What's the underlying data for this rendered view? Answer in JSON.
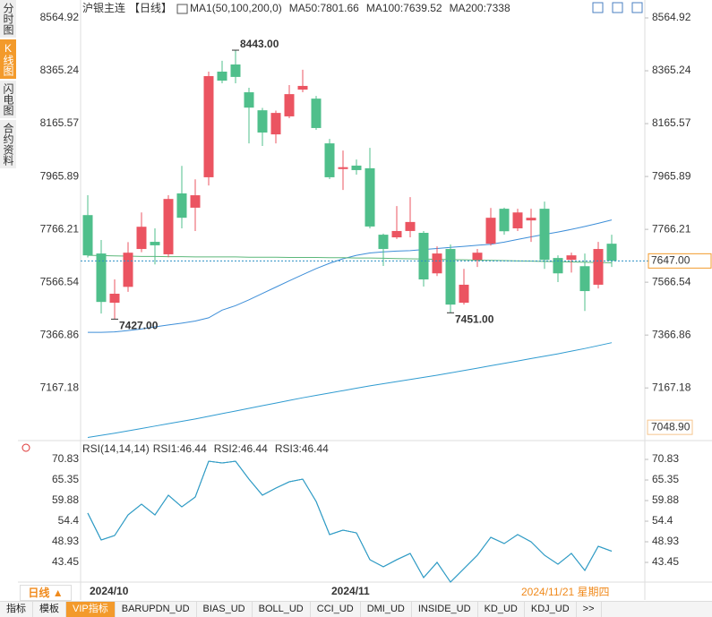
{
  "sidebar": {
    "tabs": [
      "分时图",
      "K线图",
      "闪电图",
      "合约资料"
    ],
    "active": 1
  },
  "chart_data": [
    {
      "type": "candlestick",
      "title": "沪银主连",
      "period": "【日线】",
      "indicator": "MA1(50,100,200,0)",
      "categories": [
        "2024/10",
        null,
        null,
        null,
        null,
        null,
        null,
        null,
        null,
        null,
        null,
        null,
        null,
        null,
        null,
        null,
        null,
        null,
        "2024/11",
        null,
        null,
        null,
        null,
        null,
        null,
        null,
        null,
        null,
        null,
        null,
        null,
        null,
        null,
        null,
        null,
        null,
        null,
        null,
        null,
        null
      ],
      "open": [
        7820,
        7675,
        7489,
        7549,
        7692,
        7719,
        7672,
        7902,
        7848,
        7963,
        8362,
        8389,
        8284,
        8216,
        8125,
        8193,
        8294,
        8260,
        8091,
        7994,
        8007,
        7997,
        7746,
        7736,
        7760,
        7753,
        7600,
        7692,
        7489,
        7651,
        7712,
        7844,
        7770,
        7800,
        7844,
        7658,
        7651,
        7627,
        7557,
        7712
      ],
      "high": [
        7895,
        7726,
        7577,
        7718,
        7830,
        7770,
        7895,
        8006,
        7955,
        8362,
        8403,
        8443,
        8301,
        8225,
        8215,
        8311,
        8369,
        8270,
        8108,
        8064,
        8030,
        8074,
        7750,
        7854,
        7888,
        7760,
        7702,
        7709,
        7617,
        7692,
        7847,
        7848,
        7844,
        7844,
        7871,
        7668,
        7678,
        7675,
        7719,
        7746
      ],
      "low": [
        7660,
        7448,
        7427,
        7530,
        7680,
        7634,
        7661,
        7770,
        7760,
        7932,
        8318,
        8318,
        8091,
        8081,
        8091,
        8186,
        8284,
        8142,
        7956,
        7915,
        7973,
        7770,
        7628,
        7730,
        7736,
        7550,
        7590,
        7451,
        7482,
        7624,
        7705,
        7746,
        7760,
        7719,
        7617,
        7567,
        7603,
        7458,
        7543,
        7624
      ],
      "close": [
        7668,
        7492,
        7523,
        7678,
        7776,
        7706,
        7881,
        7810,
        7895,
        8345,
        8328,
        8342,
        8226,
        8132,
        8206,
        8277,
        8308,
        8149,
        7963,
        8001,
        7990,
        7777,
        7692,
        7760,
        7794,
        7577,
        7675,
        7482,
        7557,
        7678,
        7810,
        7759,
        7830,
        7810,
        7651,
        7600,
        7668,
        7533,
        7692,
        7647
      ],
      "up_color": "#eb5461",
      "down_color": "#4fbf8b",
      "series": [
        {
          "name": "MA50:7801.66",
          "color": "#3d8ed8",
          "values": [
            7377,
            7377,
            7379,
            7384,
            7390,
            7398,
            7405,
            7412,
            7420,
            7432,
            7461,
            7478,
            7500,
            7524,
            7548,
            7572,
            7595,
            7618,
            7638,
            7655,
            7668,
            7677,
            7681,
            7684,
            7686,
            7690,
            7694,
            7698,
            7702,
            7706,
            7710,
            7718,
            7728,
            7738,
            7747,
            7756,
            7766,
            7777,
            7789,
            7801.66
          ]
        },
        {
          "name": "MA100:7639.52",
          "color": "#5cb87a",
          "values": [
            7668,
            7667,
            7666,
            7665,
            7664,
            7664,
            7663,
            7663,
            7662,
            7662,
            7662,
            7662,
            7661,
            7661,
            7661,
            7660,
            7660,
            7660,
            7659,
            7659,
            7658,
            7658,
            7657,
            7656,
            7655,
            7654,
            7653,
            7652,
            7651,
            7650,
            7649,
            7648,
            7647,
            7646,
            7645,
            7644,
            7643,
            7642,
            7641,
            7639.52
          ]
        },
        {
          "name": "MA200:7338",
          "color": "#2f9bd0",
          "values": [
            6980,
            6988,
            6996,
            7005,
            7014,
            7023,
            7032,
            7041,
            7050,
            7060,
            7070,
            7080,
            7090,
            7100,
            7110,
            7120,
            7130,
            7139,
            7148,
            7157,
            7166,
            7175,
            7183,
            7191,
            7199,
            7207,
            7215,
            7224,
            7233,
            7242,
            7251,
            7260,
            7269,
            7278,
            7287,
            7296,
            7306,
            7316,
            7327,
            7338
          ]
        }
      ],
      "ylim": [
        6975,
        8564.92
      ],
      "yticks": [
        8564.92,
        8365.24,
        8165.57,
        7965.89,
        7766.21,
        7566.54,
        7366.86,
        7167.18,
        {
          "value": 7048.9,
          "label": "7048.90"
        }
      ],
      "annotations": [
        {
          "value": 8443,
          "label": "8443.00",
          "color": "#eb5461"
        },
        {
          "value": 7427,
          "label": "7427.00",
          "color": "#4fbf8b"
        },
        {
          "value": 7451,
          "label": "7451.00",
          "color": "#4fbf8b"
        }
      ],
      "last_price": {
        "value": 7647,
        "label": "7647.00"
      }
    },
    {
      "type": "line",
      "title": "RSI(14,14,14)",
      "series": [
        {
          "name": "RSI1:46.44",
          "color": "#3d8ed8",
          "values": [
            56.55,
            49.41,
            50.6,
            56.07,
            58.93,
            56.07,
            61.31,
            58.22,
            60.83,
            70.35,
            69.88,
            70.35,
            65.59,
            61.31,
            63.21,
            64.88,
            65.59,
            59.64,
            50.84,
            52.03,
            51.31,
            44.17,
            42.27,
            44.17,
            45.84,
            39.41,
            43.46,
            38.22,
            41.79,
            45.36,
            50.12,
            48.46,
            50.84,
            48.93,
            45.36,
            42.98,
            45.84,
            41.31,
            47.74,
            46.44
          ]
        },
        {
          "name": "RSI2:46.44",
          "color": "#5cb87a",
          "values": [
            56.55,
            49.41,
            50.6,
            56.07,
            58.93,
            56.07,
            61.31,
            58.22,
            60.83,
            70.35,
            69.88,
            70.35,
            65.59,
            61.31,
            63.21,
            64.88,
            65.59,
            59.64,
            50.84,
            52.03,
            51.31,
            44.17,
            42.27,
            44.17,
            45.84,
            39.41,
            43.46,
            38.22,
            41.79,
            45.36,
            50.12,
            48.46,
            50.84,
            48.93,
            45.36,
            42.98,
            45.84,
            41.31,
            47.74,
            46.44
          ]
        },
        {
          "name": "RSI3:46.44",
          "color": "#2f9bd0",
          "values": [
            56.55,
            49.41,
            50.6,
            56.07,
            58.93,
            56.07,
            61.31,
            58.22,
            60.83,
            70.35,
            69.88,
            70.35,
            65.59,
            61.31,
            63.21,
            64.88,
            65.59,
            59.64,
            50.84,
            52.03,
            51.31,
            44.17,
            42.27,
            44.17,
            45.84,
            39.41,
            43.46,
            38.22,
            41.79,
            45.36,
            50.12,
            48.46,
            50.84,
            48.93,
            45.36,
            42.98,
            45.84,
            41.31,
            47.74,
            46.44
          ]
        }
      ],
      "ylim": [
        37.03,
        74.64
      ],
      "yticks": [
        70.83,
        65.35,
        59.88,
        54.4,
        48.93,
        43.45
      ]
    }
  ],
  "footer": {
    "period": "日线 ▲",
    "cursor_date": "2024/11/21 星期四",
    "tabs": [
      "指标",
      "模板",
      "VIP指标",
      "BARUPDN_UD",
      "BIAS_UD",
      "BOLL_UD",
      "CCI_UD",
      "DMI_UD",
      "INSIDE_UD",
      "KD_UD",
      "KDJ_UD",
      ">>"
    ],
    "active": 2
  }
}
